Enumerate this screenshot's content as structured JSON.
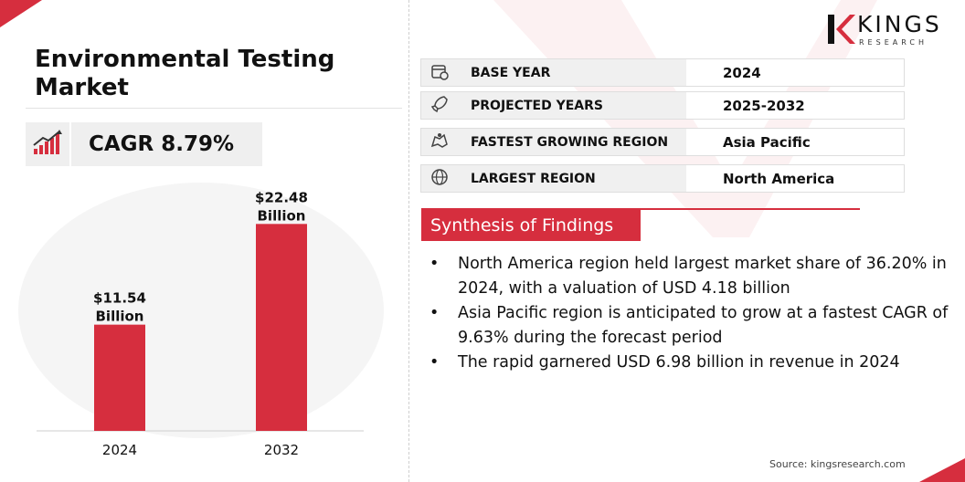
{
  "title": "Environmental Testing Market",
  "cagr": {
    "label": "CAGR 8.79%",
    "icon": "growth-chart-icon"
  },
  "logo": {
    "name": "KINGS",
    "sub": "RESEARCH"
  },
  "info_rows": [
    {
      "icon": "calendar-icon",
      "label": "BASE YEAR",
      "value": "2024"
    },
    {
      "icon": "rocket-icon",
      "label": "PROJECTED YEARS",
      "value": "2025-2032"
    },
    {
      "icon": "map-region-icon",
      "label": "FASTEST GROWING REGION",
      "value": "Asia Pacific"
    },
    {
      "icon": "globe-icon",
      "label": "LARGEST REGION",
      "value": "North America"
    }
  ],
  "synthesis": {
    "heading": "Synthesis of Findings",
    "bullet": "•",
    "items": [
      "North America region held largest market share of 36.20% in 2024, with a valuation of USD 4.18 billion",
      "Asia Pacific region is anticipated to grow at a fastest CAGR of 9.63% during the forecast period",
      "The rapid  garnered USD 6.98 billion in revenue in 2024"
    ]
  },
  "source": "Source: kingsresearch.com",
  "colors": {
    "accent": "#d62e3e",
    "panel": "#efefef"
  },
  "chart_data": {
    "type": "bar",
    "categories": [
      "2024",
      "2032"
    ],
    "values": [
      11.54,
      22.48
    ],
    "data_labels": [
      [
        "$11.54",
        "Billion"
      ],
      [
        "$22.48",
        "Billion"
      ]
    ],
    "title": "",
    "xlabel": "",
    "ylabel": "",
    "ylim": [
      0,
      24
    ],
    "grid": false,
    "bar_color": "#d62e3e"
  }
}
